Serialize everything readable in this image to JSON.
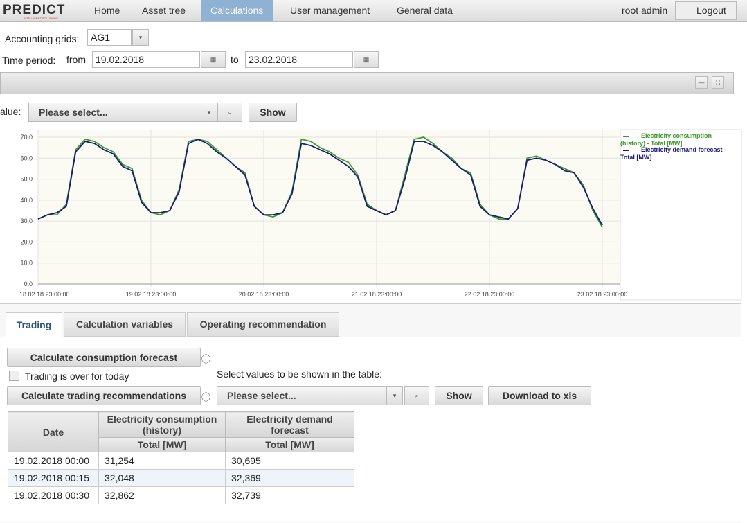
{
  "nav": {
    "logo": "PREDICT",
    "logo_sub": "INTELLIGENT SOLUTIONS",
    "items": [
      "Home",
      "Asset tree",
      "Calculations",
      "User management",
      "General data"
    ],
    "user": "root admin",
    "logout": "Logout"
  },
  "filters": {
    "grid_label": "Accounting grids:",
    "grid_value": "AG1",
    "period_label": "Time period:",
    "from_label": "from",
    "from_value": "19.02.2018",
    "to_label": "to",
    "to_value": "23.02.2018",
    "value_label": "alue:",
    "value_select": "Please select...",
    "show": "Show"
  },
  "chart_data": {
    "type": "line",
    "categories": [
      "18.02.18 23:00:00",
      null,
      null,
      null,
      null,
      null,
      null,
      null,
      null,
      null,
      null,
      null,
      "19.02.18 23:00:00",
      null,
      null,
      null,
      null,
      null,
      null,
      null,
      null,
      null,
      null,
      null,
      "20.02.18 23:00:00",
      null,
      null,
      null,
      null,
      null,
      null,
      null,
      null,
      null,
      null,
      null,
      "21.02.18 23:00:00",
      null,
      null,
      null,
      null,
      null,
      null,
      null,
      null,
      null,
      null,
      null,
      "22.02.18 23:00:00",
      null,
      null,
      null,
      null,
      null,
      null,
      null,
      null,
      null,
      null,
      null,
      "23.02.18 23:00:00"
    ],
    "series": [
      {
        "name": "Electricity consumption (history) - Total [MW]",
        "color": "#3a9a2a",
        "values": [
          31,
          33,
          33,
          38,
          64,
          69,
          68,
          65,
          63,
          57,
          55,
          40,
          34,
          33,
          35,
          45,
          68,
          69,
          68,
          64,
          60,
          56,
          53,
          37,
          33,
          32,
          34,
          44,
          69,
          68,
          65,
          63,
          60,
          58,
          52,
          38,
          35,
          33,
          35,
          52,
          69,
          70,
          67,
          63,
          60,
          55,
          53,
          38,
          33,
          31,
          31,
          36,
          60,
          61,
          59,
          57,
          55,
          53,
          47,
          35,
          27
        ]
      },
      {
        "name": "Electricity demand forecast - Total [MW]",
        "color": "#1a1a7a",
        "values": [
          31,
          33,
          34,
          37,
          63,
          68,
          67,
          64,
          62,
          56,
          54,
          39,
          34,
          34,
          35,
          44,
          67,
          69,
          67,
          63,
          60,
          56,
          52,
          37,
          33,
          33,
          34,
          43,
          67,
          66,
          64,
          62,
          59,
          56,
          51,
          37,
          35,
          33,
          35,
          50,
          68,
          68,
          66,
          63,
          59,
          55,
          52,
          37,
          33,
          32,
          31,
          36,
          59,
          60,
          59,
          57,
          54,
          53,
          46,
          36,
          28
        ]
      }
    ],
    "ylim": [
      0,
      70
    ],
    "yticks": [
      {
        "value": 0,
        "label": "0,0"
      },
      {
        "value": 10,
        "label": "10,0"
      },
      {
        "value": 20,
        "label": "20,0"
      },
      {
        "value": 30,
        "label": "30,0"
      },
      {
        "value": 40,
        "label": "40,0"
      },
      {
        "value": 50,
        "label": "50,0"
      },
      {
        "value": 60,
        "label": "60,0"
      },
      {
        "value": 70,
        "label": "70,0"
      }
    ],
    "grid": true
  },
  "tabs": [
    "Trading",
    "Calculation variables",
    "Operating recommendation"
  ],
  "trading": {
    "calc_forecast": "Calculate consumption forecast",
    "over_today": "Trading is over for today",
    "calc_reco": "Calculate trading recommendations",
    "select_label": "Select values to be shown in the table:",
    "select": "Please select...",
    "show": "Show",
    "download": "Download to xls"
  },
  "table": {
    "headers": [
      "Date",
      "Electricity consumption (history)",
      "Electricity demand forecast"
    ],
    "subheaders": [
      "Total [MW]",
      "Total [MW]"
    ],
    "rows": [
      [
        "19.02.2018 00:00",
        "31,254",
        "30,695"
      ],
      [
        "19.02.2018 00:15",
        "32,048",
        "32,369"
      ],
      [
        "19.02.2018 00:30",
        "32,862",
        "32,739"
      ]
    ]
  }
}
